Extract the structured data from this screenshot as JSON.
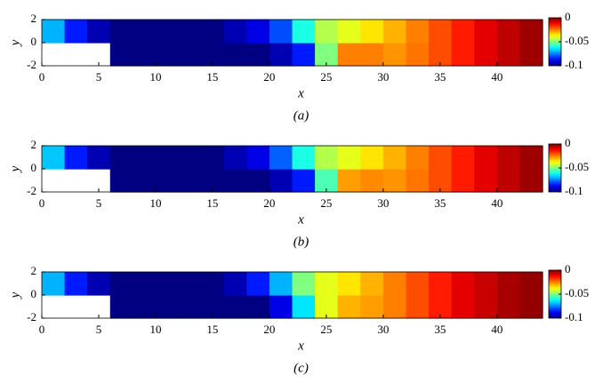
{
  "chart_data": [
    {
      "type": "heatmap",
      "caption": "(a)",
      "xlabel": "x",
      "ylabel": "y",
      "colormap": "jet",
      "xlim": [
        0,
        44
      ],
      "ylim": [
        -2,
        2
      ],
      "xticks": [
        0,
        5,
        10,
        15,
        20,
        25,
        30,
        35,
        40
      ],
      "yticks": [
        -2,
        0,
        2
      ],
      "clim": [
        -0.1,
        0
      ],
      "colorbar_ticks": [
        0,
        -0.05,
        -0.1
      ],
      "xbins": [
        0,
        2,
        4,
        6,
        8,
        10,
        12,
        14,
        16,
        18,
        20,
        22,
        24,
        26,
        28,
        30,
        32,
        34,
        36,
        38,
        40,
        42,
        44
      ],
      "ybins": [
        -2,
        0,
        2
      ],
      "values": [
        [
          null,
          null,
          null,
          -0.1,
          -0.1,
          -0.1,
          -0.1,
          -0.1,
          -0.1,
          -0.1,
          -0.095,
          -0.085,
          -0.05,
          -0.025,
          -0.025,
          -0.027,
          -0.024,
          -0.02,
          -0.015,
          -0.01,
          -0.006,
          -0.003
        ],
        [
          -0.07,
          -0.085,
          -0.095,
          -0.1,
          -0.1,
          -0.1,
          -0.1,
          -0.1,
          -0.095,
          -0.09,
          -0.08,
          -0.06,
          -0.045,
          -0.04,
          -0.035,
          -0.03,
          -0.025,
          -0.02,
          -0.015,
          -0.01,
          -0.006,
          -0.003
        ]
      ]
    },
    {
      "type": "heatmap",
      "caption": "(b)",
      "xlabel": "x",
      "ylabel": "y",
      "colormap": "jet",
      "xlim": [
        0,
        44
      ],
      "ylim": [
        -2,
        2
      ],
      "xticks": [
        0,
        5,
        10,
        15,
        20,
        25,
        30,
        35,
        40
      ],
      "yticks": [
        -2,
        0,
        2
      ],
      "clim": [
        -0.1,
        0
      ],
      "colorbar_ticks": [
        0,
        -0.05,
        -0.1
      ],
      "xbins": [
        0,
        2,
        4,
        6,
        8,
        10,
        12,
        14,
        16,
        18,
        20,
        22,
        24,
        26,
        28,
        30,
        32,
        34,
        36,
        38,
        40,
        42,
        44
      ],
      "ybins": [
        -2,
        0,
        2
      ],
      "values": [
        [
          null,
          null,
          null,
          -0.1,
          -0.1,
          -0.1,
          -0.1,
          -0.1,
          -0.1,
          -0.1,
          -0.095,
          -0.085,
          -0.055,
          -0.028,
          -0.026,
          -0.027,
          -0.024,
          -0.02,
          -0.015,
          -0.01,
          -0.006,
          -0.003
        ],
        [
          -0.068,
          -0.085,
          -0.095,
          -0.1,
          -0.1,
          -0.1,
          -0.1,
          -0.1,
          -0.095,
          -0.09,
          -0.078,
          -0.06,
          -0.045,
          -0.04,
          -0.035,
          -0.03,
          -0.025,
          -0.02,
          -0.015,
          -0.01,
          -0.006,
          -0.003
        ]
      ]
    },
    {
      "type": "heatmap",
      "caption": "(c)",
      "xlabel": "x",
      "ylabel": "y",
      "colormap": "jet",
      "xlim": [
        0,
        44
      ],
      "ylim": [
        -2,
        2
      ],
      "xticks": [
        0,
        5,
        10,
        15,
        20,
        25,
        30,
        35,
        40
      ],
      "yticks": [
        -2,
        0,
        2
      ],
      "clim": [
        -0.1,
        0
      ],
      "colorbar_ticks": [
        0,
        -0.05,
        -0.1
      ],
      "xbins": [
        0,
        2,
        4,
        6,
        8,
        10,
        12,
        14,
        16,
        18,
        20,
        22,
        24,
        26,
        28,
        30,
        32,
        34,
        36,
        38,
        40,
        42,
        44
      ],
      "ybins": [
        -2,
        0,
        2
      ],
      "values": [
        [
          null,
          null,
          null,
          -0.1,
          -0.1,
          -0.1,
          -0.1,
          -0.1,
          -0.1,
          -0.1,
          -0.09,
          -0.065,
          -0.04,
          -0.03,
          -0.028,
          -0.025,
          -0.02,
          -0.015,
          -0.01,
          -0.007,
          -0.004,
          -0.002
        ],
        [
          -0.07,
          -0.085,
          -0.095,
          -0.1,
          -0.1,
          -0.1,
          -0.1,
          -0.1,
          -0.095,
          -0.085,
          -0.07,
          -0.05,
          -0.04,
          -0.035,
          -0.03,
          -0.025,
          -0.02,
          -0.015,
          -0.01,
          -0.007,
          -0.004,
          -0.002
        ]
      ]
    }
  ]
}
